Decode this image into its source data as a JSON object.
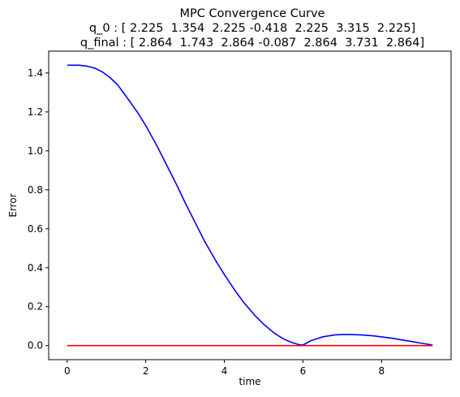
{
  "chart_data": {
    "type": "line",
    "title": "MPC Convergence Curve",
    "subtitle_lines": [
      "q_0 : [ 2.225  1.354  2.225 -0.418  2.225  3.315  2.225]",
      "q_final : [ 2.864  1.743  2.864 -0.087  2.864  3.731  2.864]"
    ],
    "xlabel": "time",
    "ylabel": "Error",
    "xlim": [
      -0.47,
      9.77
    ],
    "ylim": [
      -0.072,
      1.512
    ],
    "x_ticks": [
      0,
      2,
      4,
      6,
      8
    ],
    "x_tick_labels": [
      "0",
      "2",
      "4",
      "6",
      "8"
    ],
    "y_ticks": [
      0.0,
      0.2,
      0.4,
      0.6,
      0.8,
      1.0,
      1.2,
      1.4
    ],
    "y_tick_labels": [
      "0.0",
      "0.2",
      "0.4",
      "0.6",
      "0.8",
      "1.0",
      "1.2",
      "1.4"
    ],
    "grid": false,
    "legend": "none",
    "series": [
      {
        "color": "#0000ff",
        "x": [
          0,
          0.3,
          0.5,
          0.7,
          0.9,
          1.1,
          1.3,
          1.5,
          1.8,
          2.0,
          2.3,
          2.5,
          2.8,
          3.0,
          3.3,
          3.5,
          3.8,
          4.0,
          4.3,
          4.5,
          4.8,
          5.0,
          5.3,
          5.5,
          5.7,
          5.9,
          6.0,
          6.2,
          6.5,
          6.8,
          7.0,
          7.2,
          7.5,
          7.8,
          8.0,
          8.3,
          8.5,
          8.8,
          9.0,
          9.3
        ],
        "y": [
          1.44,
          1.44,
          1.435,
          1.425,
          1.405,
          1.375,
          1.335,
          1.28,
          1.195,
          1.13,
          1.02,
          0.94,
          0.82,
          0.735,
          0.615,
          0.535,
          0.43,
          0.365,
          0.275,
          0.22,
          0.15,
          0.11,
          0.06,
          0.035,
          0.017,
          0.005,
          0.003,
          0.025,
          0.045,
          0.055,
          0.057,
          0.057,
          0.055,
          0.05,
          0.045,
          0.037,
          0.03,
          0.02,
          0.013,
          0.003
        ]
      },
      {
        "color": "#ff0000",
        "x": [
          0,
          9.3
        ],
        "y": [
          0.0,
          0.0
        ]
      }
    ]
  }
}
